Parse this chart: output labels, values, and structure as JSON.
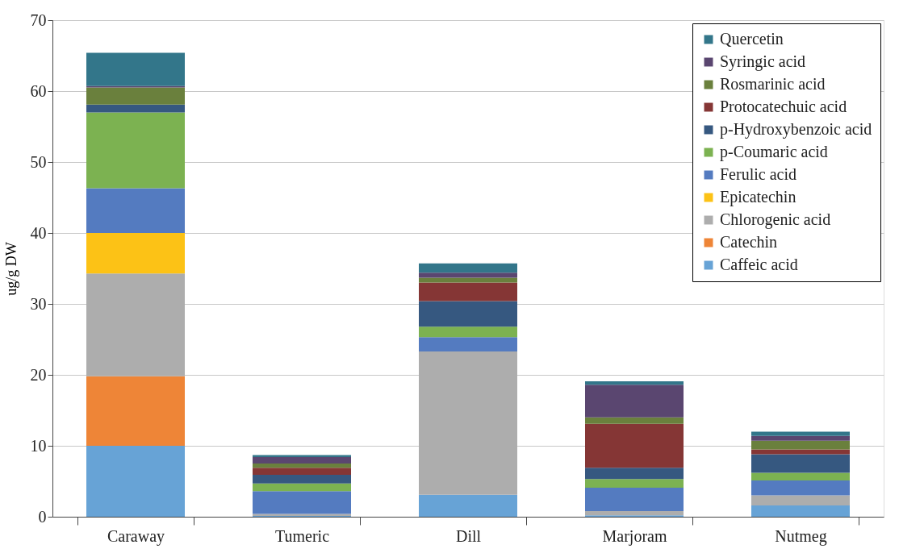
{
  "chart_data": {
    "type": "bar",
    "stacked": true,
    "ylabel": "ug/g DW",
    "categories": [
      "Caraway",
      "Tumeric",
      "Dill",
      "Marjoram",
      "Nutmeg"
    ],
    "series": [
      {
        "name": "Caffeic acid",
        "color": "#67a3d6",
        "values": [
          10.0,
          0.1,
          3.1,
          0.2,
          1.6
        ]
      },
      {
        "name": "Catechin",
        "color": "#ee8537",
        "values": [
          9.8,
          0,
          0,
          0,
          0
        ]
      },
      {
        "name": "Chlorogenic acid",
        "color": "#adadad",
        "values": [
          14.5,
          0.3,
          20.2,
          0.6,
          1.4
        ]
      },
      {
        "name": "Epicatechin",
        "color": "#fcc216",
        "values": [
          5.7,
          0,
          0,
          0,
          0
        ]
      },
      {
        "name": "Ferulic acid",
        "color": "#547bc0",
        "values": [
          6.3,
          3.2,
          2.0,
          3.3,
          2.1
        ]
      },
      {
        "name": "p-Coumaric acid",
        "color": "#7cb251",
        "values": [
          10.7,
          1.1,
          1.5,
          1.2,
          1.1
        ]
      },
      {
        "name": "p-Hydroxybenzoic acid",
        "color": "#365880",
        "values": [
          1.1,
          1.2,
          3.6,
          1.6,
          2.6
        ]
      },
      {
        "name": "Protocatechuic acid",
        "color": "#853635",
        "values": [
          0,
          1.0,
          2.6,
          6.2,
          0.7
        ]
      },
      {
        "name": "Rosmarinic acid",
        "color": "#6a803d",
        "values": [
          2.4,
          0.6,
          0.7,
          0.9,
          1.2
        ]
      },
      {
        "name": "Syringic acid",
        "color": "#5a4670",
        "values": [
          0.2,
          0.9,
          0.7,
          4.6,
          0.7
        ]
      },
      {
        "name": "Quercetin",
        "color": "#33768a",
        "values": [
          4.7,
          0.3,
          1.3,
          0.5,
          0.6
        ]
      }
    ],
    "ylim": [
      0,
      70
    ],
    "yticks": [
      0,
      10,
      20,
      30,
      40,
      50,
      60,
      70
    ],
    "grid": "y",
    "legend": "top right"
  }
}
